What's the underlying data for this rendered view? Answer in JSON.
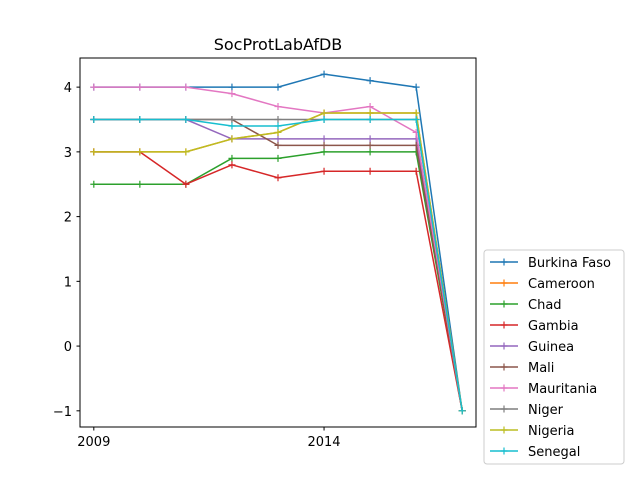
{
  "chart_data": {
    "type": "line",
    "title": "SocProtLabAfDB",
    "xlabel": "",
    "ylabel": "",
    "x": [
      2009,
      2010,
      2011,
      2012,
      2013,
      2014,
      2015,
      2016,
      2017
    ],
    "xlim": [
      2008.7,
      2017.3
    ],
    "ylim": [
      -1.25,
      4.45
    ],
    "x_ticks": [
      2009,
      2014
    ],
    "x_tick_labels": [
      "2009",
      "2014"
    ],
    "y_ticks": [
      -1,
      0,
      1,
      2,
      3,
      4
    ],
    "y_tick_labels": [
      "−1",
      "0",
      "1",
      "2",
      "3",
      "4"
    ],
    "grid": false,
    "legend_position": "outside-right-bottom",
    "series": [
      {
        "name": "Burkina Faso",
        "color": "#1f77b4",
        "values": [
          4.0,
          4.0,
          4.0,
          4.0,
          4.0,
          4.2,
          4.1,
          4.0,
          -1.0
        ]
      },
      {
        "name": "Cameroon",
        "color": "#ff7f0e",
        "values": [
          3.0,
          3.0,
          3.0,
          3.2,
          3.3,
          3.6,
          3.6,
          3.6,
          -1.0
        ]
      },
      {
        "name": "Chad",
        "color": "#2ca02c",
        "values": [
          2.5,
          2.5,
          2.5,
          2.9,
          2.9,
          3.0,
          3.0,
          3.0,
          -1.0
        ]
      },
      {
        "name": "Gambia",
        "color": "#d62728",
        "values": [
          3.0,
          3.0,
          2.5,
          2.8,
          2.6,
          2.7,
          2.7,
          2.7,
          -1.0
        ]
      },
      {
        "name": "Guinea",
        "color": "#9467bd",
        "values": [
          3.5,
          3.5,
          3.5,
          3.2,
          3.2,
          3.2,
          3.2,
          3.2,
          -1.0
        ]
      },
      {
        "name": "Mali",
        "color": "#8c564b",
        "values": [
          3.5,
          3.5,
          3.5,
          3.5,
          3.1,
          3.1,
          3.1,
          3.1,
          -1.0
        ]
      },
      {
        "name": "Mauritania",
        "color": "#e377c2",
        "values": [
          4.0,
          4.0,
          4.0,
          3.9,
          3.7,
          3.6,
          3.7,
          3.3,
          -1.0
        ]
      },
      {
        "name": "Niger",
        "color": "#7f7f7f",
        "values": [
          3.5,
          3.5,
          3.5,
          3.5,
          3.5,
          3.5,
          3.5,
          3.5,
          -1.0
        ]
      },
      {
        "name": "Nigeria",
        "color": "#bcbd22",
        "values": [
          3.0,
          3.0,
          3.0,
          3.2,
          3.3,
          3.6,
          3.6,
          3.6,
          -1.0
        ]
      },
      {
        "name": "Senegal",
        "color": "#17becf",
        "values": [
          3.5,
          3.5,
          3.5,
          3.4,
          3.4,
          3.5,
          3.5,
          3.5,
          -1.0
        ]
      }
    ]
  }
}
